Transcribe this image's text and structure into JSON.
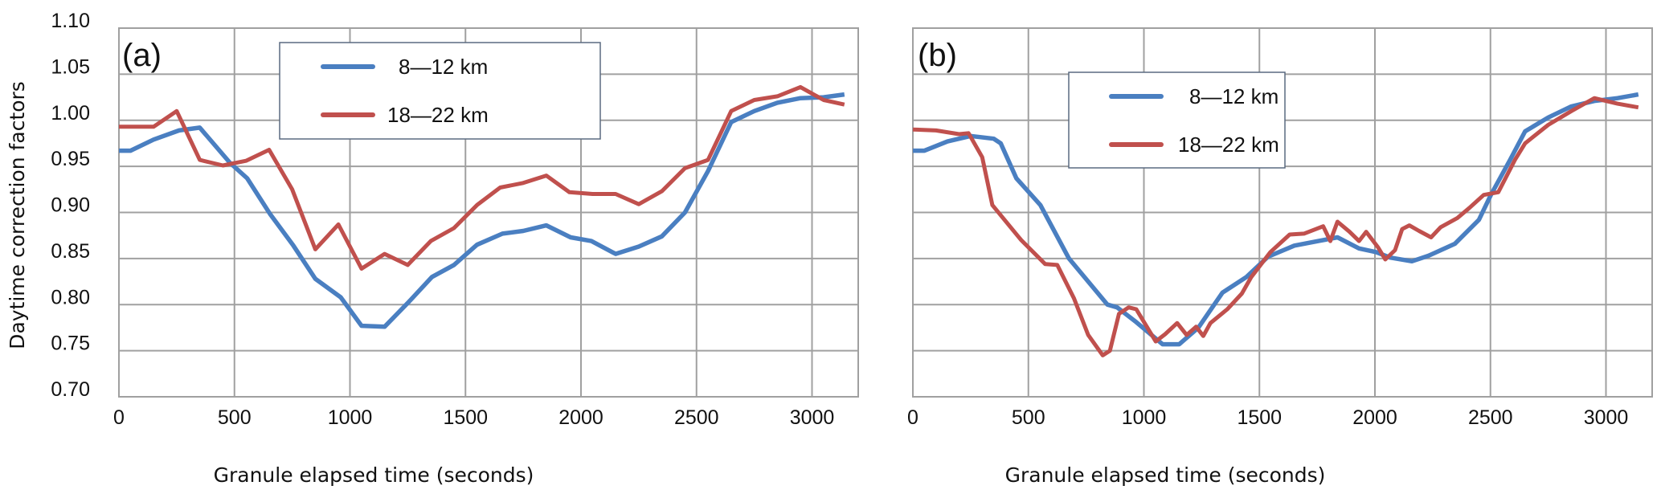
{
  "chart_data": [
    {
      "type": "line",
      "panel_label": "(a)",
      "xlabel": "Granule elapsed time (seconds)",
      "ylabel": "Daytime correction factors",
      "xlim": [
        0,
        3200
      ],
      "ylim": [
        0.7,
        1.1
      ],
      "xticks": [
        "0",
        "500",
        "1000",
        "1500",
        "2000",
        "2500",
        "3000"
      ],
      "yticks": [
        "0.70",
        "0.75",
        "0.80",
        "0.85",
        "0.90",
        "0.95",
        "1.00",
        "1.05",
        "1.10"
      ],
      "grid": true,
      "legend_position": "top-center",
      "series": [
        {
          "name": "8—12 km",
          "color": "#4a7fc1",
          "x": [
            0,
            50,
            150,
            260,
            350,
            480,
            555,
            655,
            755,
            850,
            960,
            1050,
            1150,
            1255,
            1355,
            1450,
            1550,
            1660,
            1750,
            1850,
            1955,
            2045,
            2150,
            2250,
            2350,
            2450,
            2550,
            2650,
            2750,
            2850,
            2950,
            3050,
            3140
          ],
          "y": [
            0.967,
            0.967,
            0.979,
            0.989,
            0.992,
            0.954,
            0.937,
            0.898,
            0.864,
            0.828,
            0.808,
            0.777,
            0.776,
            0.803,
            0.83,
            0.843,
            0.865,
            0.877,
            0.88,
            0.886,
            0.873,
            0.869,
            0.855,
            0.863,
            0.874,
            0.9,
            0.945,
            0.998,
            1.01,
            1.019,
            1.024,
            1.025,
            1.028
          ]
        },
        {
          "name": "18—22 km",
          "color": "#c0504d",
          "x": [
            0,
            150,
            250,
            350,
            450,
            550,
            650,
            750,
            850,
            950,
            1050,
            1150,
            1250,
            1350,
            1450,
            1550,
            1650,
            1750,
            1850,
            1950,
            2050,
            2150,
            2250,
            2350,
            2450,
            2550,
            2650,
            2750,
            2850,
            2950,
            3050,
            3140
          ],
          "y": [
            0.993,
            0.993,
            1.01,
            0.957,
            0.951,
            0.956,
            0.968,
            0.925,
            0.86,
            0.887,
            0.839,
            0.855,
            0.843,
            0.869,
            0.883,
            0.908,
            0.927,
            0.932,
            0.94,
            0.922,
            0.92,
            0.92,
            0.909,
            0.923,
            0.948,
            0.957,
            1.01,
            1.022,
            1.026,
            1.036,
            1.022,
            1.017
          ]
        }
      ]
    },
    {
      "type": "line",
      "panel_label": "(b)",
      "xlabel": "Granule elapsed time (seconds)",
      "xlim": [
        0,
        3200
      ],
      "ylim": [
        0.7,
        1.1
      ],
      "xticks": [
        "0",
        "500",
        "1000",
        "1500",
        "2000",
        "2500",
        "3000"
      ],
      "grid": true,
      "legend_position": "top-center",
      "series": [
        {
          "name": "8—12 km",
          "color": "#4a7fc1",
          "x": [
            0,
            50,
            150,
            250,
            350,
            380,
            448,
            552,
            676,
            842,
            884,
            967,
            1081,
            1153,
            1236,
            1340,
            1444,
            1537,
            1651,
            1755,
            1838,
            1931,
            2004,
            2066,
            2160,
            2232,
            2346,
            2450,
            2502,
            2585,
            2650,
            2750,
            2850,
            2950,
            3050,
            3140
          ],
          "y": [
            0.967,
            0.967,
            0.977,
            0.983,
            0.98,
            0.975,
            0.937,
            0.908,
            0.85,
            0.8,
            0.797,
            0.781,
            0.757,
            0.757,
            0.775,
            0.813,
            0.83,
            0.852,
            0.864,
            0.869,
            0.873,
            0.861,
            0.857,
            0.851,
            0.847,
            0.853,
            0.866,
            0.892,
            0.919,
            0.957,
            0.988,
            1.003,
            1.015,
            1.021,
            1.024,
            1.028
          ]
        },
        {
          "name": "18—22 km",
          "color": "#c0504d",
          "x": [
            0,
            100,
            200,
            241,
            300,
            344,
            469,
            573,
            625,
            697,
            759,
            822,
            853,
            892,
            934,
            967,
            1051,
            1092,
            1144,
            1185,
            1226,
            1257,
            1288,
            1361,
            1424,
            1465,
            1548,
            1631,
            1693,
            1776,
            1807,
            1838,
            1890,
            1931,
            1962,
            2014,
            2045,
            2087,
            2118,
            2149,
            2191,
            2243,
            2284,
            2357,
            2409,
            2471,
            2534,
            2606,
            2650,
            2750,
            2850,
            2950,
            3050,
            3140
          ],
          "y": [
            0.99,
            0.989,
            0.985,
            0.986,
            0.96,
            0.908,
            0.87,
            0.844,
            0.843,
            0.807,
            0.767,
            0.745,
            0.75,
            0.79,
            0.797,
            0.795,
            0.76,
            0.768,
            0.78,
            0.767,
            0.776,
            0.766,
            0.78,
            0.795,
            0.812,
            0.83,
            0.857,
            0.876,
            0.877,
            0.885,
            0.869,
            0.89,
            0.879,
            0.869,
            0.879,
            0.862,
            0.849,
            0.859,
            0.882,
            0.886,
            0.88,
            0.873,
            0.884,
            0.894,
            0.905,
            0.919,
            0.922,
            0.957,
            0.975,
            0.995,
            1.01,
            1.024,
            1.018,
            1.014
          ]
        }
      ]
    }
  ]
}
